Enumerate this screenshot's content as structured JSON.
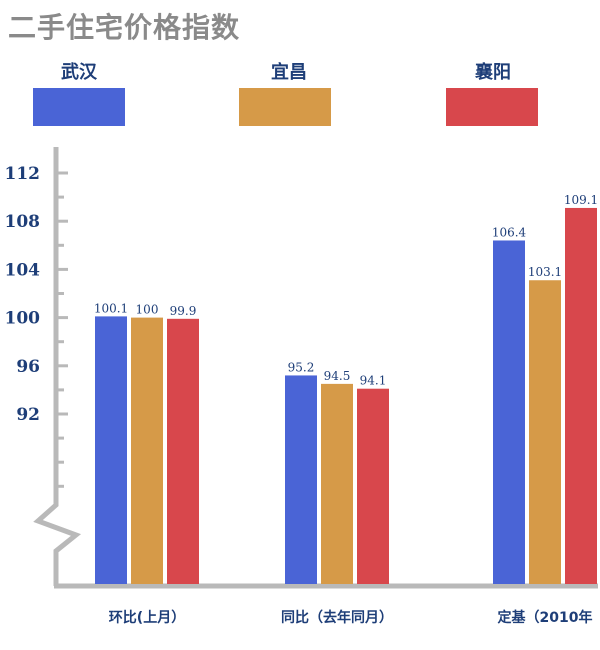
{
  "title": "二手住宅价格指数",
  "colors": {
    "axis": "#b9b9b9",
    "tick_text": "#1e3e78",
    "title": "#8a8a8a"
  },
  "chart_data": {
    "type": "bar",
    "title": "二手住宅价格指数",
    "categories": [
      "环比(上月）",
      "同比（去年同月）",
      "定基（2010年"
    ],
    "series": [
      {
        "name": "武汉",
        "color": "#4a64d6",
        "values": [
          100.1,
          95.2,
          106.4
        ],
        "labels": [
          "100.1",
          "95.2",
          "106.4"
        ]
      },
      {
        "name": "宜昌",
        "color": "#d69a48",
        "values": [
          100,
          94.5,
          103.1
        ],
        "labels": [
          "100",
          "94.5",
          "103.1"
        ]
      },
      {
        "name": "襄阳",
        "color": "#d8474c",
        "values": [
          99.9,
          94.1,
          109.1
        ],
        "labels": [
          "99.9",
          "94.1",
          "109.1"
        ]
      }
    ],
    "yticks": [
      "112",
      "108",
      "104",
      "100",
      "96",
      "92"
    ],
    "ylim": [
      86.5,
      112.9
    ],
    "axis_break": true,
    "grid": false,
    "legend": "top"
  }
}
